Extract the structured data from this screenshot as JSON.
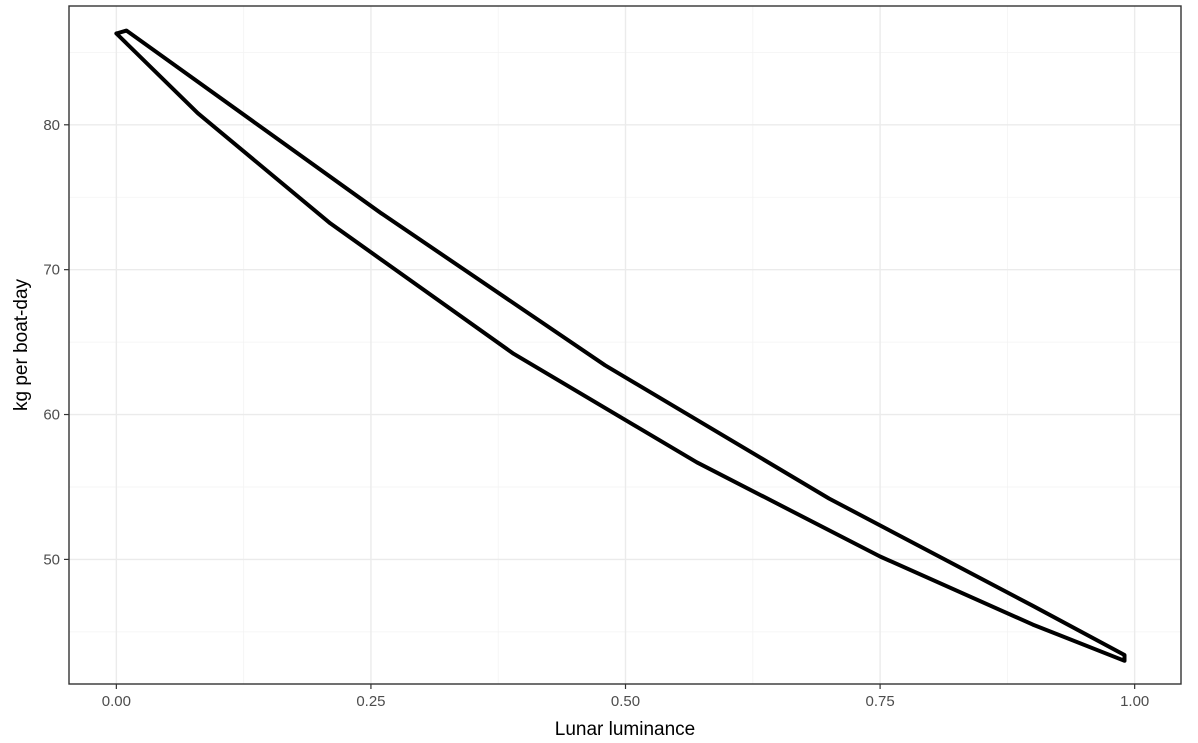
{
  "chart_data": {
    "type": "line",
    "title": "",
    "xlabel": "Lunar luminance",
    "ylabel": "kg per boat-day",
    "xlim": [
      -0.0465,
      1.0455
    ],
    "ylim": [
      41.4,
      88.2
    ],
    "x_ticks": [
      0.0,
      0.25,
      0.5,
      0.75,
      1.0
    ],
    "x_tick_labels": [
      "0.00",
      "0.25",
      "0.50",
      "0.75",
      "1.00"
    ],
    "x_minor_ticks": [
      0.125,
      0.375,
      0.625,
      0.875
    ],
    "y_ticks": [
      50,
      60,
      70,
      80
    ],
    "y_tick_labels": [
      "50",
      "60",
      "70",
      "80"
    ],
    "y_minor_ticks": [
      45,
      55,
      65,
      75,
      85
    ],
    "grid": true,
    "series": [
      {
        "values": [
          [
            0.0,
            86.3
          ],
          [
            0.01,
            86.5
          ],
          [
            0.26,
            73.9
          ],
          [
            0.48,
            63.4
          ],
          [
            0.7,
            54.2
          ],
          [
            0.9,
            46.8
          ],
          [
            0.99,
            43.4
          ],
          [
            0.99,
            43.0
          ],
          [
            0.9,
            45.5
          ],
          [
            0.75,
            50.2
          ],
          [
            0.57,
            56.7
          ],
          [
            0.39,
            64.2
          ],
          [
            0.21,
            73.2
          ],
          [
            0.08,
            80.8
          ],
          [
            0.0,
            86.3
          ]
        ]
      }
    ],
    "colors": {
      "line": "#000000",
      "grid": "#ebebeb",
      "panel_border": "#333333"
    }
  }
}
